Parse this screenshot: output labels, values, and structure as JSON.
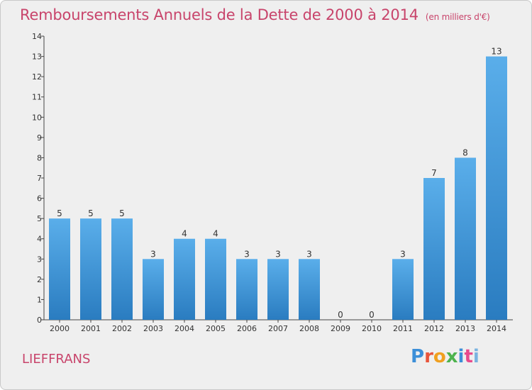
{
  "title": "Remboursements Annuels de la Dette de 2000 à 2014",
  "unit": "(en milliers d'€)",
  "commune": "LIEFFRANS",
  "logo": [
    "P",
    "r",
    "o",
    "x",
    "i",
    "t",
    "i"
  ],
  "colors": {
    "bar_top": "#5aaeea",
    "bar_bottom": "#2a7cc0",
    "title": "#c8446b"
  },
  "chart_data": {
    "type": "bar",
    "title": "Remboursements Annuels de la Dette de 2000 à 2014",
    "categories": [
      "2000",
      "2001",
      "2002",
      "2003",
      "2004",
      "2005",
      "2006",
      "2007",
      "2008",
      "2009",
      "2010",
      "2011",
      "2012",
      "2013",
      "2014"
    ],
    "values": [
      5,
      5,
      5,
      3,
      4,
      4,
      3,
      3,
      3,
      0,
      0,
      3,
      7,
      8,
      13
    ],
    "ylim": [
      0,
      14
    ],
    "yticks": [
      0,
      1,
      2,
      3,
      4,
      5,
      6,
      7,
      8,
      9,
      10,
      11,
      12,
      13,
      14
    ],
    "grid": false,
    "legend": "none"
  }
}
